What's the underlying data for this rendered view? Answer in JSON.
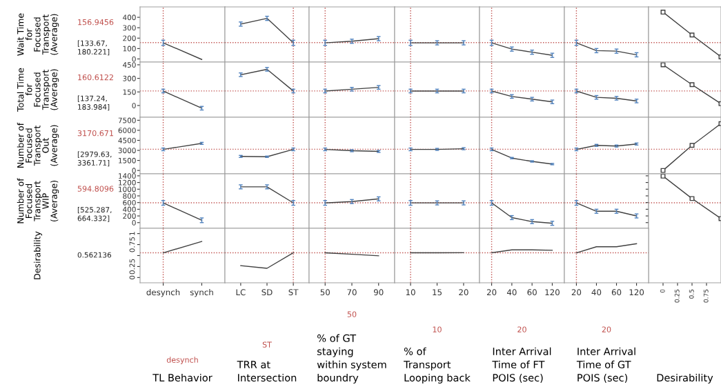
{
  "chart_data": [
    {
      "type": "line",
      "categories": [
        "desynch",
        "synch"
      ],
      "values": [
        155,
        -5
      ],
      "errors": [
        25,
        null
      ],
      "color": "#404040",
      "ylim": [
        -30,
        500
      ],
      "yticks": [
        0,
        100,
        200,
        300,
        400
      ],
      "ylabel": "Wait Time for Focused Transport (Average)",
      "annotations": [
        "156.9456",
        "[133.67, 180.221]"
      ],
      "ref_lines": [
        {
          "axis": "x",
          "value": "desynch",
          "color": "#c0504d",
          "line_style": "dotted"
        },
        {
          "axis": "y",
          "value": 156.9456,
          "color": "#c0504d",
          "line_style": "dotted"
        }
      ],
      "tick_labels": "y"
    },
    {
      "type": "line",
      "categories": [
        "LC",
        "SD",
        "ST"
      ],
      "values": [
        335,
        390,
        155
      ],
      "errors": [
        20,
        20,
        25
      ],
      "color": "#404040",
      "ylim": [
        -30,
        500
      ],
      "ref_lines": [
        {
          "axis": "x",
          "value": "ST",
          "color": "#c0504d",
          "line_style": "dotted"
        },
        {
          "axis": "y",
          "value": 156.9456,
          "color": "#c0504d",
          "line_style": "dotted"
        }
      ],
      "tick_labels": false
    },
    {
      "type": "line",
      "categories": [
        "50",
        "70",
        "90"
      ],
      "values": [
        155,
        170,
        195
      ],
      "errors": [
        25,
        20,
        20
      ],
      "color": "#404040",
      "ylim": [
        -30,
        500
      ],
      "ref_lines": [
        {
          "axis": "x",
          "value": "50",
          "color": "#c0504d",
          "line_style": "dotted"
        },
        {
          "axis": "y",
          "value": 156.9456,
          "color": "#c0504d",
          "line_style": "dotted"
        }
      ],
      "tick_labels": false
    },
    {
      "type": "line",
      "categories": [
        "10",
        "15",
        "20"
      ],
      "values": [
        155,
        155,
        155
      ],
      "errors": [
        25,
        20,
        20
      ],
      "color": "#404040",
      "ylim": [
        -30,
        500
      ],
      "ref_lines": [
        {
          "axis": "x",
          "value": "10",
          "color": "#c0504d",
          "line_style": "dotted"
        },
        {
          "axis": "y",
          "value": 156.9456,
          "color": "#c0504d",
          "line_style": "dotted"
        }
      ],
      "tick_labels": false
    },
    {
      "type": "line",
      "categories": [
        "20",
        "40",
        "60",
        "120"
      ],
      "values": [
        155,
        95,
        65,
        35
      ],
      "errors": [
        25,
        20,
        20,
        20
      ],
      "color": "#404040",
      "ylim": [
        -30,
        500
      ],
      "ref_lines": [
        {
          "axis": "x",
          "value": "20",
          "color": "#c0504d",
          "line_style": "dotted"
        },
        {
          "axis": "y",
          "value": 156.9456,
          "color": "#c0504d",
          "line_style": "dotted"
        }
      ],
      "tick_labels": false
    },
    {
      "type": "line",
      "categories": [
        "20",
        "40",
        "60",
        "120"
      ],
      "values": [
        155,
        80,
        75,
        40
      ],
      "errors": [
        25,
        20,
        20,
        20
      ],
      "color": "#404040",
      "ylim": [
        -30,
        500
      ],
      "ref_lines": [
        {
          "axis": "x",
          "value": "20",
          "color": "#c0504d",
          "line_style": "dotted"
        },
        {
          "axis": "y",
          "value": 156.9456,
          "color": "#c0504d",
          "line_style": "dotted"
        }
      ],
      "tick_labels": false
    },
    {
      "type": "line",
      "x": [
        0,
        0.5,
        1
      ],
      "values": [
        450,
        230,
        20
      ],
      "color": "#404040",
      "marker": "square",
      "xlim": [
        -0.25,
        1
      ],
      "xticks": [
        0,
        0.25,
        0.5,
        0.75
      ],
      "ylim": [
        -30,
        500
      ],
      "ref_lines": [
        {
          "axis": "y",
          "value": 156.9456,
          "color": "#c0504d",
          "line_style": "dotted"
        }
      ],
      "tick_labels": false
    },
    {
      "type": "line",
      "categories": [
        "desynch",
        "synch"
      ],
      "values": [
        160,
        -30
      ],
      "errors": [
        20,
        20
      ],
      "color": "#404040",
      "ylim": [
        -130,
        480
      ],
      "yticks": [
        0,
        150,
        300,
        450
      ],
      "ylabel": "Total Time for Focused Transport (Average)",
      "annotations": [
        "160.6122",
        "[137.24, 183.984]"
      ],
      "ref_lines": [
        {
          "axis": "x",
          "value": "desynch",
          "color": "#c0504d",
          "line_style": "dotted"
        },
        {
          "axis": "y",
          "value": 160.6122,
          "color": "#c0504d",
          "line_style": "dotted"
        }
      ],
      "tick_labels": "y"
    },
    {
      "type": "line",
      "categories": [
        "LC",
        "SD",
        "ST"
      ],
      "values": [
        340,
        400,
        160
      ],
      "errors": [
        20,
        20,
        20
      ],
      "color": "#404040",
      "ylim": [
        -130,
        480
      ],
      "ref_lines": [
        {
          "axis": "x",
          "value": "ST",
          "color": "#c0504d",
          "line_style": "dotted"
        },
        {
          "axis": "y",
          "value": 160.6122,
          "color": "#c0504d",
          "line_style": "dotted"
        }
      ],
      "tick_labels": false
    },
    {
      "type": "line",
      "categories": [
        "50",
        "70",
        "90"
      ],
      "values": [
        160,
        180,
        200
      ],
      "errors": [
        20,
        20,
        20
      ],
      "color": "#404040",
      "ylim": [
        -130,
        480
      ],
      "ref_lines": [
        {
          "axis": "x",
          "value": "50",
          "color": "#c0504d",
          "line_style": "dotted"
        },
        {
          "axis": "y",
          "value": 160.6122,
          "color": "#c0504d",
          "line_style": "dotted"
        }
      ],
      "tick_labels": false
    },
    {
      "type": "line",
      "categories": [
        "10",
        "15",
        "20"
      ],
      "values": [
        160,
        160,
        160
      ],
      "errors": [
        20,
        20,
        20
      ],
      "color": "#404040",
      "ylim": [
        -130,
        480
      ],
      "ref_lines": [
        {
          "axis": "x",
          "value": "10",
          "color": "#c0504d",
          "line_style": "dotted"
        },
        {
          "axis": "y",
          "value": 160.6122,
          "color": "#c0504d",
          "line_style": "dotted"
        }
      ],
      "tick_labels": false
    },
    {
      "type": "line",
      "categories": [
        "20",
        "40",
        "60",
        "120"
      ],
      "values": [
        160,
        100,
        70,
        40
      ],
      "errors": [
        20,
        20,
        20,
        20
      ],
      "color": "#404040",
      "ylim": [
        -130,
        480
      ],
      "ref_lines": [
        {
          "axis": "x",
          "value": "20",
          "color": "#c0504d",
          "line_style": "dotted"
        },
        {
          "axis": "y",
          "value": 160.6122,
          "color": "#c0504d",
          "line_style": "dotted"
        }
      ],
      "tick_labels": false
    },
    {
      "type": "line",
      "categories": [
        "20",
        "40",
        "60",
        "120"
      ],
      "values": [
        160,
        90,
        80,
        50
      ],
      "errors": [
        20,
        20,
        20,
        20
      ],
      "color": "#404040",
      "ylim": [
        -130,
        480
      ],
      "ref_lines": [
        {
          "axis": "x",
          "value": "20",
          "color": "#c0504d",
          "line_style": "dotted"
        },
        {
          "axis": "y",
          "value": 160.6122,
          "color": "#c0504d",
          "line_style": "dotted"
        }
      ],
      "tick_labels": false
    },
    {
      "type": "line",
      "x": [
        0,
        0.5,
        1
      ],
      "values": [
        450,
        230,
        20
      ],
      "color": "#404040",
      "marker": "square",
      "xlim": [
        -0.25,
        1
      ],
      "xticks": [
        0,
        0.25,
        0.5,
        0.75
      ],
      "ylim": [
        -130,
        480
      ],
      "ref_lines": [
        {
          "axis": "y",
          "value": 160.6122,
          "color": "#c0504d",
          "line_style": "dotted"
        }
      ],
      "tick_labels": false
    },
    {
      "type": "line",
      "categories": [
        "desynch",
        "synch"
      ],
      "values": [
        3150,
        4050
      ],
      "errors": [
        200,
        150
      ],
      "color": "#404040",
      "ylim": [
        -500,
        7950
      ],
      "yticks": [
        0,
        1500,
        3000,
        4500,
        6000,
        7500
      ],
      "ylabel": "Number of Focused Transport Out (Average)",
      "annotations": [
        "3170.671",
        "[2979.63, 3361.71]"
      ],
      "ref_lines": [
        {
          "axis": "x",
          "value": "desynch",
          "color": "#c0504d",
          "line_style": "dotted"
        },
        {
          "axis": "y",
          "value": 3170.671,
          "color": "#c0504d",
          "line_style": "dotted"
        }
      ],
      "tick_labels": "y"
    },
    {
      "type": "line",
      "categories": [
        "LC",
        "SD",
        "ST"
      ],
      "values": [
        2100,
        2050,
        3150
      ],
      "errors": [
        150,
        100,
        200
      ],
      "color": "#404040",
      "ylim": [
        -500,
        7950
      ],
      "ref_lines": [
        {
          "axis": "x",
          "value": "ST",
          "color": "#c0504d",
          "line_style": "dotted"
        },
        {
          "axis": "y",
          "value": 3170.671,
          "color": "#c0504d",
          "line_style": "dotted"
        }
      ],
      "tick_labels": false
    },
    {
      "type": "line",
      "categories": [
        "50",
        "70",
        "90"
      ],
      "values": [
        3150,
        2950,
        2850
      ],
      "errors": [
        200,
        150,
        150
      ],
      "color": "#404040",
      "ylim": [
        -500,
        7950
      ],
      "ref_lines": [
        {
          "axis": "x",
          "value": "50",
          "color": "#c0504d",
          "line_style": "dotted"
        },
        {
          "axis": "y",
          "value": 3170.671,
          "color": "#c0504d",
          "line_style": "dotted"
        }
      ],
      "tick_labels": false
    },
    {
      "type": "line",
      "categories": [
        "10",
        "15",
        "20"
      ],
      "values": [
        3150,
        3150,
        3250
      ],
      "errors": [
        200,
        150,
        150
      ],
      "color": "#404040",
      "ylim": [
        -500,
        7950
      ],
      "ref_lines": [
        {
          "axis": "x",
          "value": "10",
          "color": "#c0504d",
          "line_style": "dotted"
        },
        {
          "axis": "y",
          "value": 3170.671,
          "color": "#c0504d",
          "line_style": "dotted"
        }
      ],
      "tick_labels": false
    },
    {
      "type": "line",
      "categories": [
        "20",
        "40",
        "60",
        "120"
      ],
      "values": [
        3150,
        1850,
        1350,
        950
      ],
      "errors": [
        200,
        100,
        100,
        100
      ],
      "color": "#404040",
      "ylim": [
        -500,
        7950
      ],
      "ref_lines": [
        {
          "axis": "x",
          "value": "20",
          "color": "#c0504d",
          "line_style": "dotted"
        },
        {
          "axis": "y",
          "value": 3170.671,
          "color": "#c0504d",
          "line_style": "dotted"
        }
      ],
      "tick_labels": false
    },
    {
      "type": "line",
      "categories": [
        "20",
        "40",
        "60",
        "120"
      ],
      "values": [
        3150,
        3750,
        3650,
        3950
      ],
      "errors": [
        200,
        150,
        150,
        150
      ],
      "color": "#404040",
      "ylim": [
        -500,
        7950
      ],
      "ref_lines": [
        {
          "axis": "x",
          "value": "20",
          "color": "#c0504d",
          "line_style": "dotted"
        },
        {
          "axis": "y",
          "value": 3170.671,
          "color": "#c0504d",
          "line_style": "dotted"
        }
      ],
      "tick_labels": false
    },
    {
      "type": "line",
      "x": [
        0,
        0.5,
        1
      ],
      "values": [
        0,
        3750,
        7000
      ],
      "color": "#404040",
      "marker": "square",
      "xlim": [
        -0.25,
        1
      ],
      "xticks": [
        0,
        0.25,
        0.5,
        0.75
      ],
      "ylim": [
        -500,
        7950
      ],
      "ref_lines": [
        {
          "axis": "y",
          "value": 3170.671,
          "color": "#c0504d",
          "line_style": "dotted"
        }
      ],
      "tick_labels": false
    },
    {
      "type": "line",
      "categories": [
        "desynch",
        "synch"
      ],
      "values": [
        590,
        70
      ],
      "errors": [
        70,
        70
      ],
      "color": "#404040",
      "ylim": [
        -170,
        1460
      ],
      "yticks": [
        0,
        200,
        400,
        600,
        800,
        1000,
        1200,
        1400
      ],
      "ylabel": "Number of Focused Transport WIP (Average)",
      "annotations": [
        "594.8096",
        "[525.287, 664.332]"
      ],
      "ref_lines": [
        {
          "axis": "x",
          "value": "desynch",
          "color": "#c0504d",
          "line_style": "dotted"
        },
        {
          "axis": "y",
          "value": 594.8096,
          "color": "#c0504d",
          "line_style": "dotted"
        }
      ],
      "tick_labels": "y"
    },
    {
      "type": "line",
      "categories": [
        "LC",
        "SD",
        "ST"
      ],
      "values": [
        1070,
        1070,
        590
      ],
      "errors": [
        60,
        60,
        70
      ],
      "color": "#404040",
      "ylim": [
        -170,
        1460
      ],
      "ref_lines": [
        {
          "axis": "x",
          "value": "ST",
          "color": "#c0504d",
          "line_style": "dotted"
        },
        {
          "axis": "y",
          "value": 594.8096,
          "color": "#c0504d",
          "line_style": "dotted"
        }
      ],
      "tick_labels": false
    },
    {
      "type": "line",
      "categories": [
        "50",
        "70",
        "90"
      ],
      "values": [
        590,
        630,
        710
      ],
      "errors": [
        70,
        60,
        60
      ],
      "color": "#404040",
      "ylim": [
        -170,
        1460
      ],
      "ref_lines": [
        {
          "axis": "x",
          "value": "50",
          "color": "#c0504d",
          "line_style": "dotted"
        },
        {
          "axis": "y",
          "value": 594.8096,
          "color": "#c0504d",
          "line_style": "dotted"
        }
      ],
      "tick_labels": false
    },
    {
      "type": "line",
      "categories": [
        "10",
        "15",
        "20"
      ],
      "values": [
        590,
        590,
        590
      ],
      "errors": [
        70,
        60,
        60
      ],
      "color": "#404040",
      "ylim": [
        -170,
        1460
      ],
      "ref_lines": [
        {
          "axis": "x",
          "value": "10",
          "color": "#c0504d",
          "line_style": "dotted"
        },
        {
          "axis": "y",
          "value": 594.8096,
          "color": "#c0504d",
          "line_style": "dotted"
        }
      ],
      "tick_labels": false
    },
    {
      "type": "line",
      "categories": [
        "20",
        "40",
        "60",
        "120"
      ],
      "values": [
        590,
        150,
        30,
        -20
      ],
      "errors": [
        70,
        60,
        60,
        60
      ],
      "color": "#404040",
      "ylim": [
        -170,
        1460
      ],
      "ref_lines": [
        {
          "axis": "x",
          "value": "20",
          "color": "#c0504d",
          "line_style": "dotted"
        },
        {
          "axis": "y",
          "value": 594.8096,
          "color": "#c0504d",
          "line_style": "dotted"
        }
      ],
      "tick_labels": false
    },
    {
      "type": "line",
      "categories": [
        "20",
        "40",
        "60",
        "120"
      ],
      "values": [
        590,
        340,
        340,
        200
      ],
      "errors": [
        70,
        60,
        60,
        60
      ],
      "color": "#404040",
      "ylim": [
        -170,
        1460
      ],
      "ref_lines": [
        {
          "axis": "x",
          "value": "20",
          "color": "#c0504d",
          "line_style": "dotted"
        },
        {
          "axis": "y",
          "value": 594.8096,
          "color": "#c0504d",
          "line_style": "dotted"
        }
      ],
      "tick_labels": false
    },
    {
      "type": "line",
      "x": [
        0,
        0.5,
        1
      ],
      "values": [
        1390,
        720,
        120
      ],
      "color": "#404040",
      "marker": "square",
      "xlim": [
        -0.25,
        1
      ],
      "xticks": [
        0,
        0.25,
        0.5,
        0.75
      ],
      "ylim": [
        -1800,
        1460
      ],
      "yticks": [
        0,
        200,
        400,
        600,
        800,
        1000,
        1200,
        1400
      ],
      "xlabel": "Desirability",
      "ref_lines": [
        {
          "axis": "y",
          "value": 594.8096,
          "color": "#c0504d",
          "line_style": "dotted"
        }
      ],
      "tick_labels": "x"
    },
    {
      "type": "line",
      "categories": [
        "desynch",
        "synch"
      ],
      "values": [
        0.562,
        0.82
      ],
      "color": "#404040",
      "ylim": [
        -0.12,
        1.12
      ],
      "yticks": [
        0,
        0.25,
        {
          "value": 0.5,
          "label": null
        },
        0.75,
        1
      ],
      "ylabel": "Desirability",
      "xlabel": "TL Behavior",
      "annotations": [
        "0.562136"
      ],
      "ref_lines": [
        {
          "axis": "x",
          "value": "desynch",
          "label": "desynch",
          "color": "#c0504d",
          "line_style": "dotted"
        },
        {
          "axis": "y",
          "value": 0.562136,
          "color": "#c0504d",
          "line_style": "dotted"
        }
      ]
    },
    {
      "type": "line",
      "categories": [
        "LC",
        "SD",
        "ST"
      ],
      "values": [
        0.27,
        0.21,
        0.562
      ],
      "color": "#404040",
      "ylim": [
        -0.12,
        1.12
      ],
      "xlabel": "TRR at Intersection",
      "ref_lines": [
        {
          "axis": "x",
          "value": "ST",
          "label": "ST",
          "color": "#c0504d",
          "line_style": "dotted"
        },
        {
          "axis": "y",
          "value": 0.562136,
          "color": "#c0504d",
          "line_style": "dotted"
        }
      ],
      "tick_labels": "x"
    },
    {
      "type": "line",
      "categories": [
        "50",
        "70",
        "90"
      ],
      "values": [
        0.562,
        0.53,
        0.495
      ],
      "color": "#404040",
      "ylim": [
        -0.12,
        1.12
      ],
      "xlabel": "% of GT staying within system boundry",
      "ref_lines": [
        {
          "axis": "x",
          "value": "50",
          "label": "50",
          "color": "#c0504d",
          "line_style": "dotted"
        },
        {
          "axis": "y",
          "value": 0.562136,
          "color": "#c0504d",
          "line_style": "dotted"
        }
      ],
      "tick_labels": "x"
    },
    {
      "type": "line",
      "categories": [
        "10",
        "15",
        "20"
      ],
      "values": [
        0.562,
        0.562,
        0.565
      ],
      "color": "#404040",
      "ylim": [
        -0.12,
        1.12
      ],
      "xlabel": "% of Transport Looping back",
      "ref_lines": [
        {
          "axis": "x",
          "value": "10",
          "label": "10",
          "color": "#c0504d",
          "line_style": "dotted"
        },
        {
          "axis": "y",
          "value": 0.562136,
          "color": "#c0504d",
          "line_style": "dotted"
        }
      ],
      "tick_labels": "x"
    },
    {
      "type": "line",
      "categories": [
        "20",
        "40",
        "60",
        "120"
      ],
      "values": [
        0.562,
        0.63,
        0.63,
        0.62
      ],
      "color": "#404040",
      "ylim": [
        -0.12,
        1.12
      ],
      "xlabel": "Inter Arrival Time of FT POIS (sec)",
      "ref_lines": [
        {
          "axis": "x",
          "value": "20",
          "label": "20",
          "color": "#c0504d",
          "line_style": "dotted"
        },
        {
          "axis": "y",
          "value": 0.562136,
          "color": "#c0504d",
          "line_style": "dotted"
        }
      ],
      "tick_labels": "x"
    },
    {
      "type": "line",
      "categories": [
        "20",
        "40",
        "60",
        "120"
      ],
      "values": [
        0.562,
        0.7,
        0.7,
        0.77
      ],
      "color": "#404040",
      "ylim": [
        -0.12,
        1.12
      ],
      "xlabel": "Inter Arrival Time of GT POIS (sec)",
      "ref_lines": [
        {
          "axis": "x",
          "value": "20",
          "label": "20",
          "color": "#c0504d",
          "line_style": "dotted"
        },
        {
          "axis": "y",
          "value": 0.562136,
          "color": "#c0504d",
          "line_style": "dotted"
        }
      ],
      "tick_labels": "x"
    }
  ]
}
